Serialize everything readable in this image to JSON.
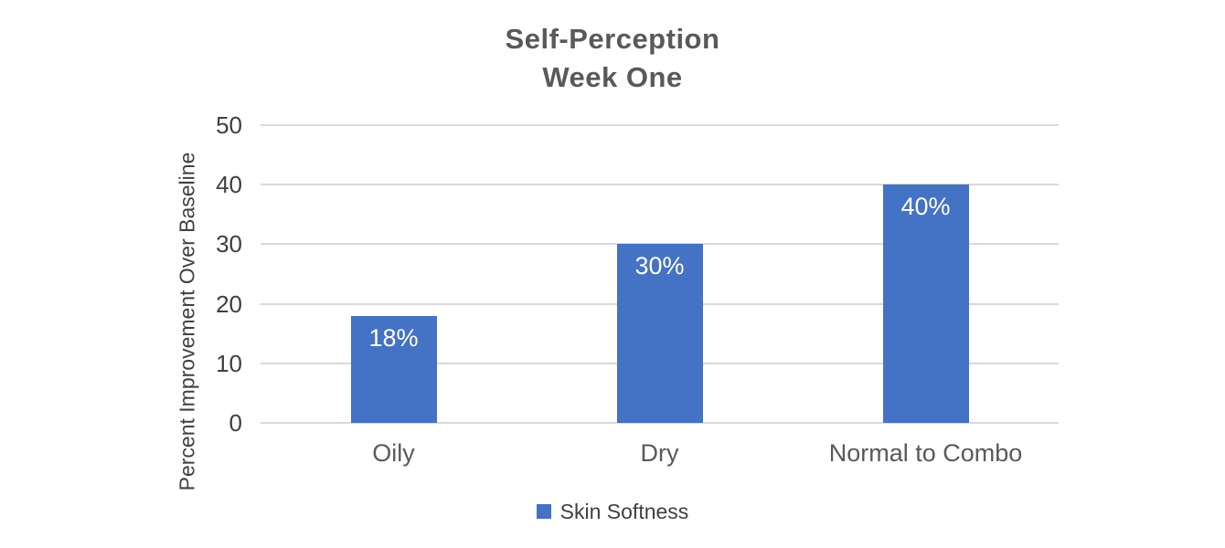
{
  "title": {
    "line1": "Self-Perception",
    "line2": "Week One"
  },
  "chart_data": {
    "type": "bar",
    "title": "Self-Perception Week One",
    "categories": [
      "Oily",
      "Dry",
      "Normal to Combo"
    ],
    "values": [
      18,
      30,
      40
    ],
    "value_labels": [
      "18%",
      "30%",
      "40%"
    ],
    "xlabel": "",
    "ylabel": "Percent Improvement Over Baseline",
    "ylim": [
      0,
      50
    ],
    "yticks": [
      0,
      10,
      20,
      30,
      40,
      50
    ],
    "grid": true,
    "legend": {
      "position": "bottom",
      "entries": [
        "Skin Softness"
      ]
    },
    "colors": {
      "bar": "#4472C4",
      "gridline": "#D9D9D9",
      "title_text": "#595959",
      "axis_text": "#404040",
      "category_text": "#595959",
      "data_label": "#FFFFFF",
      "background": "#FFFFFF"
    }
  }
}
